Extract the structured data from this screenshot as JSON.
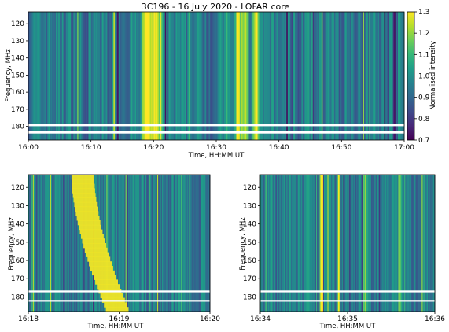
{
  "figure_title": "3C196 - 16 July 2020 - LOFAR core",
  "colors": {
    "viridis": [
      "#440154",
      "#482878",
      "#3e4989",
      "#31688e",
      "#26828e",
      "#1f9e89",
      "#35b779",
      "#6ece58",
      "#b5de2b",
      "#fde725"
    ]
  },
  "chart_data": [
    {
      "type": "heatmap",
      "name": "overview",
      "xlabel": "Time, HH:MM UT",
      "ylabel": "Frequency, MHz",
      "x_range": [
        "16:00",
        "17:00"
      ],
      "x_ticks": [
        "16:00",
        "16:10",
        "16:20",
        "16:30",
        "16:40",
        "16:50",
        "17:00"
      ],
      "y_range": [
        113,
        188
      ],
      "y_ticks": [
        120,
        130,
        140,
        150,
        160,
        170,
        180
      ],
      "flagged_bands_mhz": [
        [
          178.7,
          179.9
        ],
        [
          182.8,
          184.2
        ]
      ],
      "bright_times": [
        "16:18.7",
        "16:19.4",
        "16:20.4",
        "16:33.5",
        "16:34.6",
        "16:36.4"
      ],
      "colorbar": {
        "label": "Normalised intensity",
        "range": [
          0.7,
          1.3
        ],
        "ticks": [
          0.7,
          0.8,
          0.9,
          1.0,
          1.1,
          1.2,
          1.3
        ],
        "colormap": "viridis"
      }
    },
    {
      "type": "heatmap",
      "name": "zoom-1",
      "xlabel": "Time, HH:MM UT",
      "ylabel": "Frequency, MHz",
      "x_range": [
        "16:18",
        "16:20"
      ],
      "x_ticks": [
        "16:18",
        "16:19",
        "16:20"
      ],
      "y_range": [
        113,
        188
      ],
      "y_ticks": [
        120,
        130,
        140,
        150,
        160,
        170,
        180
      ],
      "flagged_bands_mhz": [
        [
          176.5,
          177.5
        ],
        [
          181.6,
          182.6
        ]
      ]
    },
    {
      "type": "heatmap",
      "name": "zoom-2",
      "xlabel": "Time, HH:MM UT",
      "ylabel": "Frequency, MHz",
      "x_range": [
        "16:34",
        "16:36"
      ],
      "x_ticks": [
        "16:34",
        "16:35",
        "16:36"
      ],
      "y_range": [
        113,
        188
      ],
      "y_ticks": [
        120,
        130,
        140,
        150,
        160,
        170,
        180
      ],
      "flagged_bands_mhz": [
        [
          176.5,
          177.5
        ],
        [
          181.6,
          182.6
        ]
      ]
    }
  ]
}
